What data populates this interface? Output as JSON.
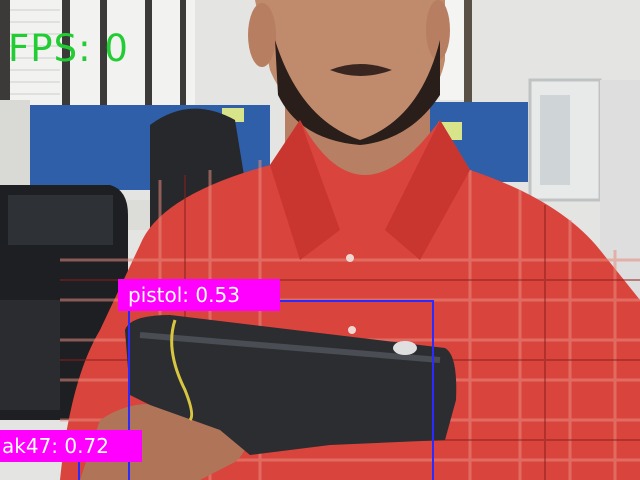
{
  "overlay": {
    "fps_label": "FPS:",
    "fps_value": "0",
    "fps_color": "#22cc33"
  },
  "detections": [
    {
      "label": "pistol",
      "confidence": "0.53",
      "text": "pistol: 0.53",
      "box_color": "#2b2bff",
      "label_color": "#ff00ff"
    },
    {
      "label": "ak47",
      "confidence": "0.72",
      "text": "ak47: 0.72",
      "box_color": "#2b2bff",
      "label_color": "#ff00ff"
    }
  ]
}
